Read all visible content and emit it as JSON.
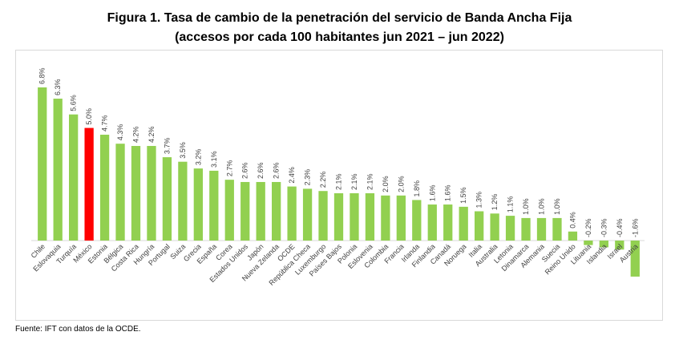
{
  "title": "Figura 1. Tasa de cambio de la penetración del servicio de Banda Ancha Fija",
  "subtitle": "(accesos por cada 100 habitantes jun 2021 – jun 2022)",
  "source": "Fuente: IFT con datos de la OCDE.",
  "colors": {
    "bar": "#92d050",
    "highlight": "#ff0000",
    "label": "#404040",
    "axis": "#d9d9d9"
  },
  "chart_data": {
    "type": "bar",
    "title": "Figura 1. Tasa de cambio de la penetración del servicio de Banda Ancha Fija",
    "subtitle": "(accesos por cada 100 habitantes jun 2021 – jun 2022)",
    "xlabel": "",
    "ylabel": "",
    "ylim": [
      -1.7,
      6.9
    ],
    "grid": false,
    "highlight": "México",
    "categories": [
      "Chile",
      "Eslovaquia",
      "Turquía",
      "México",
      "Estonia",
      "Bélgica",
      "Costa Rica",
      "Hungría",
      "Portugal",
      "Suiza",
      "Grecia",
      "España",
      "Corea",
      "Estados Unidos",
      "Japón",
      "Nueva Zelanda",
      "OCDE",
      "República Checa",
      "Luxemburgo",
      "Países Bajos",
      "Polonia",
      "Eslovenia",
      "Colombia",
      "Francia",
      "Irlanda",
      "Finlandia",
      "Canadá",
      "Noruega",
      "Italia",
      "Australia",
      "Letonia",
      "Dinamarca",
      "Alemania",
      "Suecia",
      "Reino Unido",
      "Lituania",
      "Islandia",
      "Israel",
      "Austria"
    ],
    "values": [
      6.8,
      6.3,
      5.6,
      5.0,
      4.7,
      4.3,
      4.2,
      4.2,
      3.7,
      3.5,
      3.2,
      3.1,
      2.7,
      2.6,
      2.6,
      2.6,
      2.4,
      2.3,
      2.2,
      2.1,
      2.1,
      2.1,
      2.0,
      2.0,
      1.8,
      1.6,
      1.6,
      1.5,
      1.3,
      1.2,
      1.1,
      1.0,
      1.0,
      1.0,
      0.4,
      -0.2,
      -0.3,
      -0.4,
      -1.6
    ],
    "labels": [
      "6.8%",
      "6.3%",
      "5.6%",
      "5.0%",
      "4.7%",
      "4.3%",
      "4.2%",
      "4.2%",
      "3.7%",
      "3.5%",
      "3.2%",
      "3.1%",
      "2.7%",
      "2.6%",
      "2.6%",
      "2.6%",
      "2.4%",
      "2.3%",
      "2.2%",
      "2.1%",
      "2.1%",
      "2.1%",
      "2.0%",
      "2.0%",
      "1.8%",
      "1.6%",
      "1.6%",
      "1.5%",
      "1.3%",
      "1.2%",
      "1.1%",
      "1.0%",
      "1.0%",
      "1.0%",
      "0.4%",
      "-0.2%",
      "-0.3%",
      "-0.4%",
      "-1.6%"
    ]
  }
}
